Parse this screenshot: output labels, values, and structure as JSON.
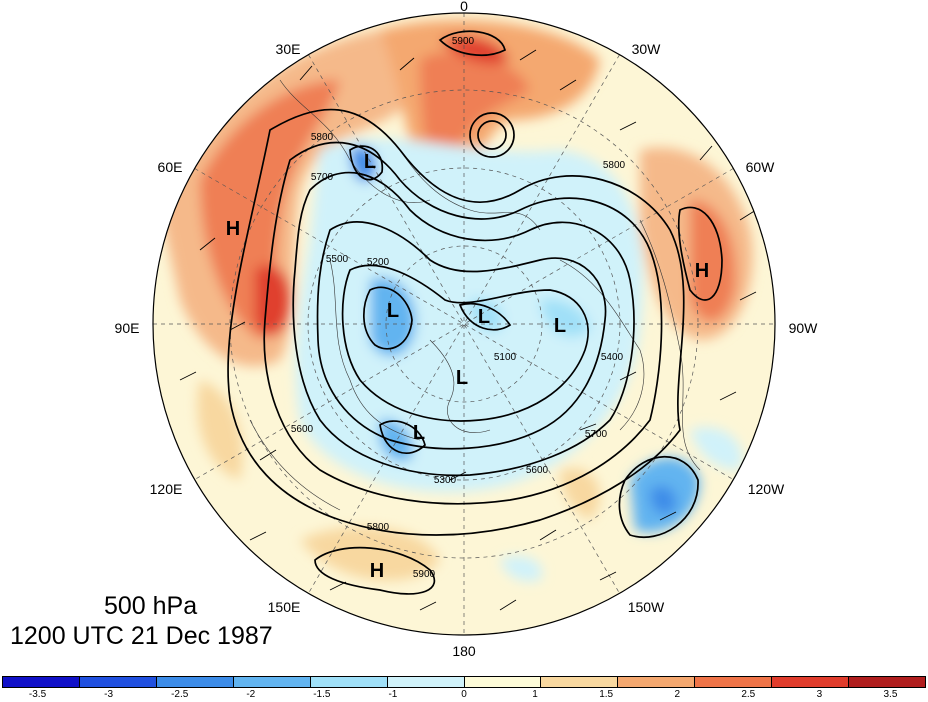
{
  "title": {
    "level": "500 hPa",
    "time": "1200 UTC 21 Dec 1987"
  },
  "longitude_labels": [
    {
      "text": "0",
      "lon": 0
    },
    {
      "text": "30W",
      "lon": -30
    },
    {
      "text": "60W",
      "lon": -60
    },
    {
      "text": "90W",
      "lon": -90
    },
    {
      "text": "120W",
      "lon": -120
    },
    {
      "text": "150W",
      "lon": -150
    },
    {
      "text": "180",
      "lon": 180
    },
    {
      "text": "150E",
      "lon": 150
    },
    {
      "text": "120E",
      "lon": 120
    },
    {
      "text": "90E",
      "lon": 90
    },
    {
      "text": "60E",
      "lon": 60
    },
    {
      "text": "30E",
      "lon": 30
    }
  ],
  "pressure_centers": [
    {
      "type": "H",
      "label": "H"
    },
    {
      "type": "H",
      "label": "H"
    },
    {
      "type": "H",
      "label": "H"
    },
    {
      "type": "L",
      "label": "L"
    },
    {
      "type": "L",
      "label": "L"
    },
    {
      "type": "L",
      "label": "L"
    },
    {
      "type": "L",
      "label": "L"
    },
    {
      "type": "L",
      "label": "L"
    },
    {
      "type": "L",
      "label": "L"
    }
  ],
  "contour_labels": [
    "5900",
    "5800",
    "5700",
    "5600",
    "5500",
    "5400",
    "5300",
    "5200",
    "5100",
    "5800",
    "5900",
    "5700",
    "5800",
    "5600"
  ],
  "colorbar": {
    "colors": [
      "#1010c8",
      "#2050e0",
      "#3c8ce8",
      "#62b4f0",
      "#a0e0f8",
      "#d0f2fa",
      "#fdfbd8",
      "#f8d8a0",
      "#f4a870",
      "#ef7448",
      "#e03c2c",
      "#b01e1e"
    ],
    "tick_labels": [
      "-3.5",
      "-3",
      "-2.5",
      "-2",
      "-1.5",
      "-1",
      "0",
      "1",
      "1.5",
      "2",
      "2.5",
      "3",
      "3.5"
    ]
  }
}
